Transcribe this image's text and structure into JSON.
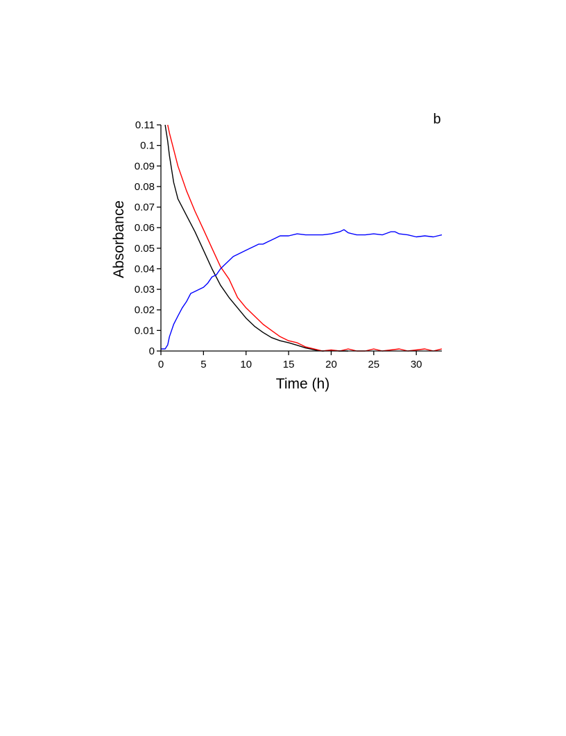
{
  "chart_data": {
    "type": "line",
    "panel_label": "b",
    "xlabel": "Time (h)",
    "ylabel": "Absorbance",
    "xlim": [
      0,
      33
    ],
    "ylim": [
      0,
      0.11
    ],
    "x_ticks": [
      0,
      5,
      10,
      15,
      20,
      25,
      30
    ],
    "x_tick_labels": [
      "0",
      "5",
      "10",
      "15",
      "20",
      "25",
      "30"
    ],
    "y_ticks": [
      0,
      0.01,
      0.02,
      0.03,
      0.04,
      0.05,
      0.06,
      0.07,
      0.08,
      0.09,
      0.1,
      0.11
    ],
    "y_tick_labels": [
      "0",
      "0.01",
      "0.02",
      "0.03",
      "0.04",
      "0.05",
      "0.06",
      "0.07",
      "0.08",
      "0.09",
      "0.1",
      "0.11"
    ],
    "grid": false,
    "legend": "none",
    "series": [
      {
        "color": "#000000",
        "x": [
          0.5,
          0.8,
          1,
          1.5,
          2,
          3,
          4,
          5,
          6,
          7,
          8,
          9,
          10,
          11,
          12,
          13,
          14,
          15,
          16,
          17,
          18,
          18.5,
          19,
          20,
          21,
          22
        ],
        "y": [
          0.11,
          0.102,
          0.095,
          0.082,
          0.074,
          0.066,
          0.058,
          0.049,
          0.04,
          0.032,
          0.026,
          0.021,
          0.016,
          0.012,
          0.009,
          0.0065,
          0.005,
          0.004,
          0.0028,
          0.0015,
          0.0006,
          0.0002,
          0,
          0.0003,
          0,
          0
        ]
      },
      {
        "color": "#ff0000",
        "x": [
          0.8,
          1,
          1.5,
          2,
          3,
          4,
          5,
          6,
          7,
          8,
          9,
          10,
          11,
          12,
          13,
          14,
          15,
          16,
          17,
          18,
          19,
          20,
          21,
          22,
          23,
          24,
          25,
          26,
          27,
          28,
          29,
          30,
          31,
          32,
          33
        ],
        "y": [
          0.11,
          0.106,
          0.098,
          0.09,
          0.078,
          0.068,
          0.059,
          0.05,
          0.041,
          0.035,
          0.026,
          0.021,
          0.017,
          0.013,
          0.01,
          0.007,
          0.005,
          0.004,
          0.002,
          0.001,
          0,
          0.0005,
          0,
          0.001,
          0,
          0,
          0.001,
          0,
          0.0005,
          0.001,
          0,
          0.0005,
          0.001,
          0,
          0.001
        ]
      },
      {
        "color": "#0000ff",
        "x": [
          0,
          0.5,
          0.8,
          1,
          1.5,
          2,
          2.5,
          3,
          3.5,
          4,
          4.5,
          5,
          5.5,
          6,
          6.5,
          7,
          7.5,
          8,
          8.5,
          9,
          9.5,
          10,
          10.5,
          11,
          11.5,
          12,
          12.5,
          13,
          13.5,
          14,
          15,
          16,
          17,
          18,
          19,
          20,
          21,
          21.5,
          22,
          23,
          24,
          25,
          26,
          27,
          27.5,
          28,
          29,
          30,
          31,
          32,
          33
        ],
        "y": [
          0.001,
          0.001,
          0.003,
          0.007,
          0.013,
          0.017,
          0.021,
          0.024,
          0.028,
          0.029,
          0.03,
          0.031,
          0.033,
          0.036,
          0.037,
          0.04,
          0.042,
          0.044,
          0.046,
          0.047,
          0.048,
          0.049,
          0.05,
          0.051,
          0.052,
          0.052,
          0.053,
          0.054,
          0.055,
          0.056,
          0.056,
          0.057,
          0.0565,
          0.0565,
          0.0565,
          0.057,
          0.058,
          0.059,
          0.0575,
          0.0565,
          0.0565,
          0.057,
          0.0565,
          0.058,
          0.058,
          0.057,
          0.0565,
          0.0555,
          0.056,
          0.0555,
          0.0565
        ]
      }
    ]
  }
}
